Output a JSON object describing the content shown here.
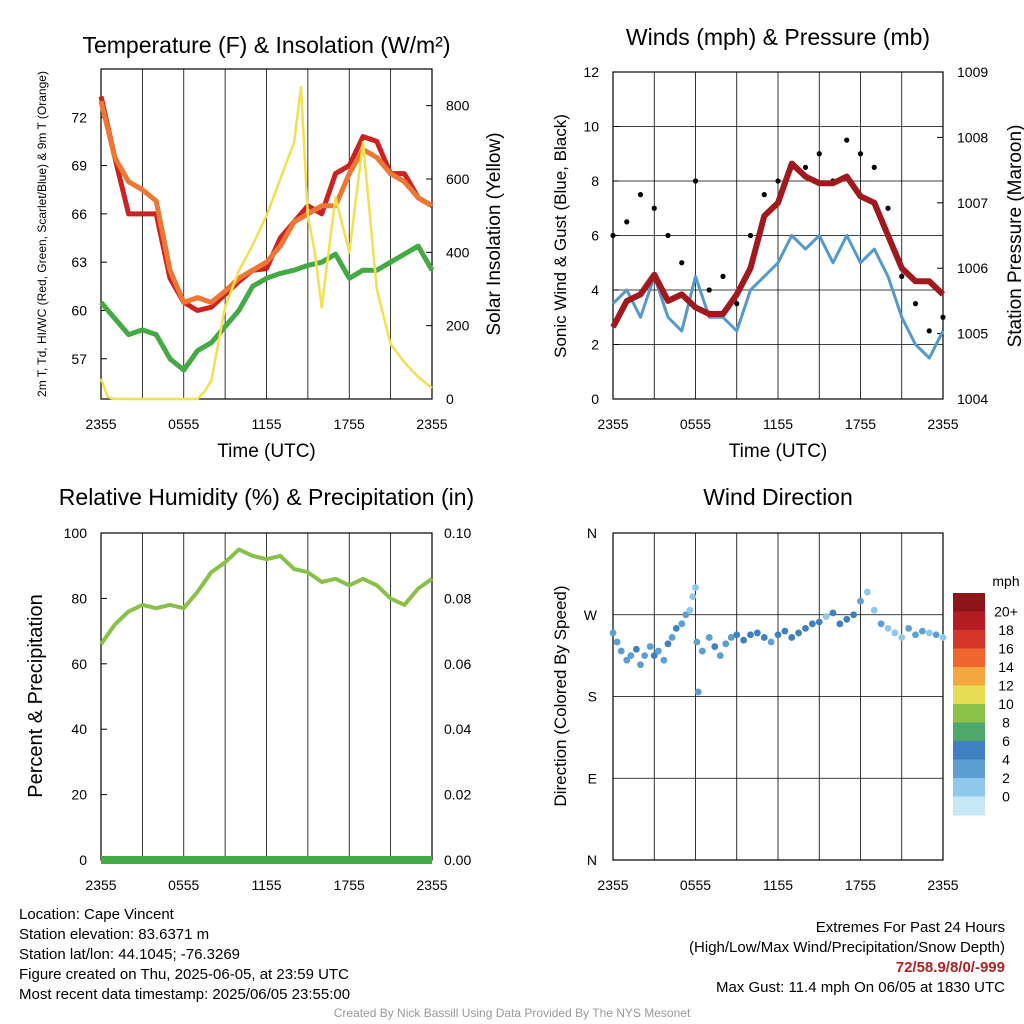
{
  "chart_data": [
    {
      "type": "line",
      "title": "Temperature (F) & Insolation (W/m²)",
      "xlabel": "Time (UTC)",
      "ylabel": "2m T, Td, HI/WC (Red, Green, Scarlet/Blue) & 9m T (Orange)",
      "y2label": "Solar Insolation (Yellow)",
      "x_ticks": [
        "2355",
        "0555",
        "1155",
        "1755",
        "2355"
      ],
      "ylim": [
        54.5,
        75
      ],
      "y_ticks": [
        57,
        60,
        63,
        66,
        69,
        72
      ],
      "y2lim": [
        0,
        900
      ],
      "y2_ticks": [
        0,
        200,
        400,
        600,
        800
      ],
      "series": [
        {
          "name": "2m T",
          "axis": "left",
          "color": "#cc2222",
          "x": [
            0,
            1,
            2,
            3,
            4,
            5,
            6,
            7,
            8,
            9,
            10,
            11,
            12,
            13,
            14,
            15,
            16,
            17,
            18,
            19,
            20,
            21,
            22,
            23,
            24
          ],
          "values": [
            73.3,
            69.5,
            66.0,
            66.0,
            66.0,
            62.0,
            60.5,
            60.0,
            60.2,
            61.0,
            61.8,
            62.5,
            62.6,
            64.5,
            65.5,
            66.5,
            66.0,
            68.5,
            69.0,
            70.8,
            70.5,
            68.5,
            68.5,
            67.0,
            66.5
          ]
        },
        {
          "name": "9m T",
          "axis": "left",
          "color": "#ee7733",
          "x": [
            0,
            1,
            2,
            3,
            4,
            5,
            6,
            7,
            8,
            9,
            10,
            11,
            12,
            13,
            14,
            15,
            16,
            17,
            18,
            19,
            20,
            21,
            22,
            23,
            24
          ],
          "values": [
            73.0,
            69.5,
            68.0,
            67.5,
            66.8,
            62.5,
            60.5,
            60.8,
            60.5,
            61.2,
            62.0,
            62.5,
            63.0,
            64.0,
            65.5,
            66.0,
            66.5,
            66.5,
            68.5,
            70.0,
            69.5,
            68.5,
            68.0,
            67.0,
            66.5
          ]
        },
        {
          "name": "2m Td",
          "axis": "left",
          "color": "#44aa44",
          "x": [
            0,
            1,
            2,
            3,
            4,
            5,
            6,
            7,
            8,
            9,
            10,
            11,
            12,
            13,
            14,
            15,
            16,
            17,
            18,
            19,
            20,
            21,
            22,
            23,
            24
          ],
          "values": [
            60.5,
            59.5,
            58.5,
            58.8,
            58.5,
            57.0,
            56.3,
            57.5,
            58.0,
            59.0,
            60.0,
            61.5,
            62.0,
            62.3,
            62.5,
            62.8,
            63.0,
            63.5,
            62.0,
            62.5,
            62.5,
            63.0,
            63.5,
            64.0,
            62.5
          ]
        },
        {
          "name": "Solar Insolation",
          "axis": "right",
          "color": "#f2e050",
          "x": [
            0,
            0.5,
            1,
            2,
            3,
            4,
            5,
            6,
            7,
            7.5,
            8,
            8.5,
            9,
            10,
            11,
            12,
            13,
            14,
            14.5,
            15,
            15.5,
            16,
            17,
            18,
            19,
            20,
            21,
            22,
            23,
            24
          ],
          "values": [
            55,
            5,
            0,
            0,
            0,
            0,
            0,
            0,
            0,
            20,
            50,
            150,
            250,
            350,
            420,
            500,
            600,
            700,
            850,
            500,
            400,
            250,
            550,
            400,
            700,
            300,
            150,
            100,
            60,
            30
          ]
        }
      ]
    },
    {
      "type": "scatter",
      "title": "Winds (mph) & Pressure (mb)",
      "xlabel": "Time (UTC)",
      "ylabel": "Sonic Wind & Gust (Blue, Black)",
      "y2label": "Station Pressure (Maroon)",
      "x_ticks": [
        "2355",
        "0555",
        "1155",
        "1755",
        "2355"
      ],
      "ylim": [
        0,
        12
      ],
      "y_ticks": [
        0,
        2,
        4,
        6,
        8,
        10,
        12
      ],
      "y2lim": [
        1004,
        1009
      ],
      "y2_ticks": [
        1004,
        1005,
        1006,
        1007,
        1008,
        1009
      ],
      "series": [
        {
          "name": "Sonic Wind",
          "axis": "left",
          "color": "#5599cc",
          "x": [
            0,
            1,
            2,
            3,
            4,
            5,
            6,
            7,
            8,
            9,
            10,
            11,
            12,
            13,
            14,
            15,
            16,
            17,
            18,
            19,
            20,
            21,
            22,
            23,
            24
          ],
          "values": [
            3.5,
            4.0,
            3.0,
            4.5,
            3.0,
            2.5,
            4.5,
            3.0,
            3.0,
            2.5,
            4.0,
            4.5,
            5.0,
            6.0,
            5.5,
            6.0,
            5.0,
            6.0,
            5.0,
            5.5,
            4.5,
            3.0,
            2.0,
            1.5,
            2.5
          ]
        },
        {
          "name": "Gust",
          "axis": "left",
          "color": "#000000",
          "x": [
            0,
            1,
            2,
            3,
            4,
            5,
            6,
            7,
            8,
            9,
            10,
            11,
            12,
            13,
            14,
            15,
            16,
            17,
            18,
            19,
            20,
            21,
            22,
            23,
            24
          ],
          "values": [
            6.0,
            6.5,
            7.5,
            7.0,
            6.0,
            5.0,
            8.0,
            4.0,
            4.5,
            3.5,
            6.0,
            7.5,
            8.0,
            8.5,
            8.5,
            9.0,
            8.0,
            9.5,
            9.0,
            8.5,
            7.0,
            4.5,
            3.5,
            2.5,
            3.0
          ]
        },
        {
          "name": "Station Pressure",
          "axis": "right",
          "color": "#a0191e",
          "x": [
            0,
            1,
            2,
            3,
            4,
            5,
            6,
            7,
            8,
            9,
            10,
            11,
            12,
            13,
            14,
            15,
            16,
            17,
            18,
            19,
            20,
            21,
            22,
            23,
            24
          ],
          "values": [
            1005.1,
            1005.5,
            1005.6,
            1005.9,
            1005.5,
            1005.6,
            1005.4,
            1005.3,
            1005.3,
            1005.6,
            1006.0,
            1006.8,
            1007.0,
            1007.6,
            1007.4,
            1007.3,
            1007.3,
            1007.4,
            1007.1,
            1007.0,
            1006.5,
            1006.0,
            1005.8,
            1005.8,
            1005.6
          ]
        }
      ]
    },
    {
      "type": "line",
      "title": "Relative Humidity (%) & Precipitation (in)",
      "ylabel": "Percent & Precipitation",
      "x_ticks": [
        "2355",
        "0555",
        "1155",
        "1755",
        "2355"
      ],
      "ylim": [
        0,
        100
      ],
      "y_ticks": [
        0,
        20,
        40,
        60,
        80,
        100
      ],
      "y2lim": [
        0,
        0.1
      ],
      "y2_ticks": [
        "0.00",
        "0.02",
        "0.04",
        "0.06",
        "0.08",
        "0.10"
      ],
      "series": [
        {
          "name": "Relative Humidity",
          "axis": "left",
          "color": "#88c048",
          "x": [
            0,
            1,
            2,
            3,
            4,
            5,
            6,
            7,
            8,
            9,
            10,
            11,
            12,
            13,
            14,
            15,
            16,
            17,
            18,
            19,
            20,
            21,
            22,
            23,
            24
          ],
          "values": [
            66,
            72,
            76,
            78,
            77,
            78,
            77,
            82,
            88,
            91,
            95,
            93,
            92,
            93,
            89,
            88,
            85,
            86,
            84,
            86,
            84,
            80,
            78,
            83,
            86
          ]
        },
        {
          "name": "Precipitation",
          "axis": "right",
          "color": "#44aa44",
          "x": [
            0,
            24
          ],
          "values": [
            0,
            0
          ]
        }
      ]
    },
    {
      "type": "scatter",
      "title": "Wind Direction",
      "ylabel": "Direction (Colored By Speed)",
      "x_ticks": [
        "2355",
        "0555",
        "1155",
        "1755",
        "2355"
      ],
      "y_ticks": [
        "N",
        "E",
        "S",
        "W",
        "N"
      ],
      "ylim": [
        0,
        360
      ],
      "colorbar": {
        "title": "mph",
        "labels": [
          "0",
          "2",
          "4",
          "6",
          "8",
          "10",
          "12",
          "14",
          "16",
          "18",
          "20+"
        ],
        "colors": [
          "#c6e8f7",
          "#8ec8ec",
          "#5b9fd3",
          "#3f80c0",
          "#4fa86b",
          "#8cc24a",
          "#e6dd55",
          "#f4a640",
          "#ee6530",
          "#d8352a",
          "#b61c23",
          "#8b1519"
        ]
      },
      "points": [
        [
          0,
          250,
          4
        ],
        [
          0.3,
          240,
          4
        ],
        [
          0.6,
          230,
          3
        ],
        [
          1,
          220,
          4
        ],
        [
          1.3,
          225,
          4
        ],
        [
          1.7,
          232,
          5
        ],
        [
          2,
          215,
          4
        ],
        [
          2.3,
          225,
          4
        ],
        [
          2.7,
          235,
          4
        ],
        [
          3,
          225,
          6
        ],
        [
          3.3,
          230,
          4
        ],
        [
          3.7,
          220,
          4
        ],
        [
          4,
          238,
          5
        ],
        [
          4.3,
          245,
          4
        ],
        [
          4.6,
          255,
          6
        ],
        [
          5,
          260,
          3
        ],
        [
          5.3,
          270,
          3
        ],
        [
          5.6,
          275,
          2
        ],
        [
          5.8,
          290,
          2
        ],
        [
          6,
          300,
          2
        ],
        [
          6.1,
          240,
          4
        ],
        [
          6.2,
          185,
          4
        ],
        [
          6.5,
          230,
          4
        ],
        [
          7,
          245,
          4
        ],
        [
          7.4,
          235,
          5
        ],
        [
          7.8,
          225,
          3
        ],
        [
          8.2,
          238,
          4
        ],
        [
          8.6,
          245,
          4
        ],
        [
          9,
          248,
          5
        ],
        [
          9.5,
          242,
          6
        ],
        [
          10,
          248,
          6
        ],
        [
          10.5,
          250,
          5
        ],
        [
          11,
          245,
          6
        ],
        [
          11.5,
          240,
          4
        ],
        [
          12,
          248,
          6
        ],
        [
          12.5,
          252,
          6
        ],
        [
          13,
          245,
          5
        ],
        [
          13.5,
          250,
          6
        ],
        [
          14,
          255,
          6
        ],
        [
          14.5,
          260,
          6
        ],
        [
          15,
          262,
          6
        ],
        [
          15.5,
          268,
          2
        ],
        [
          16,
          272,
          5
        ],
        [
          16.5,
          260,
          6
        ],
        [
          17,
          265,
          6
        ],
        [
          17.5,
          270,
          6
        ],
        [
          18,
          285,
          4
        ],
        [
          18.5,
          295,
          2
        ],
        [
          19,
          275,
          2
        ],
        [
          19.5,
          260,
          3
        ],
        [
          20,
          255,
          2
        ],
        [
          20.5,
          250,
          1
        ],
        [
          21,
          245,
          2
        ],
        [
          21.5,
          255,
          3
        ],
        [
          22,
          248,
          4
        ],
        [
          22.5,
          252,
          3
        ],
        [
          23,
          250,
          2
        ],
        [
          23.5,
          248,
          3
        ],
        [
          24,
          245,
          2
        ]
      ]
    }
  ],
  "info": {
    "location": "Location: Cape Vincent",
    "elevation": "Station elevation: 83.6371 m",
    "latlon": "Station lat/lon: 44.1045; -76.3269",
    "created": "Figure created on Thu, 2025-06-05, at 23:59 UTC",
    "recent": "Most recent data timestamp: 2025/06/05 23:55:00",
    "extremes_title": "Extremes For Past 24 Hours",
    "extremes_legend": "(High/Low/Max Wind/Precipitation/Snow Depth)",
    "extremes_values": "72/58.9/8/0/-999",
    "max_gust": "Max Gust: 11.4 mph On 06/05 at 1830 UTC",
    "credit": "Created By Nick Bassill Using Data Provided By The NYS Mesonet"
  }
}
